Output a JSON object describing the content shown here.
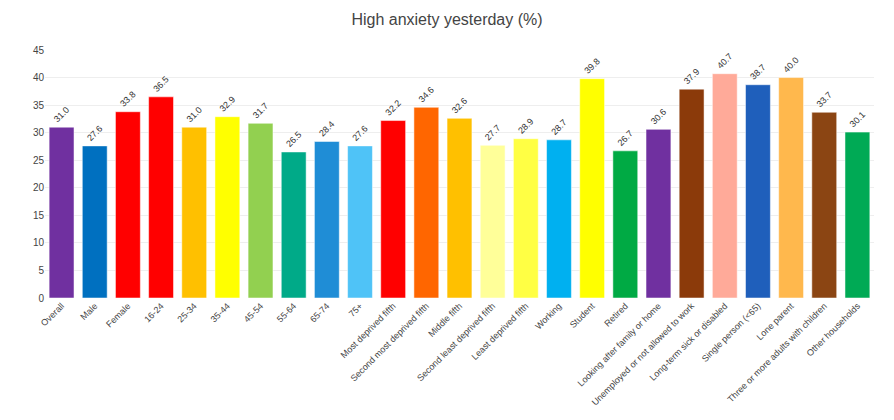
{
  "chart_data": {
    "type": "bar",
    "title": "High anxiety yesterday (%)",
    "categories": [
      "Overall",
      "Male",
      "Female",
      "16-24",
      "25-34",
      "35-44",
      "45-54",
      "55-64",
      "65-74",
      "75+",
      "Most deprived fifth",
      "Second most deprived fifth",
      "Middle fifth",
      "Second least deprived fifth",
      "Least deprived fifth",
      "Working",
      "Student",
      "Retired",
      "Looking after family or home",
      "Unemployed or not allowed to work",
      "Long-term sick or disabled",
      "Single person (<65)",
      "Lone parent",
      "Three or more adults with children",
      "Other households"
    ],
    "values": [
      31.0,
      27.6,
      33.8,
      36.5,
      31.0,
      32.9,
      31.7,
      26.5,
      28.4,
      27.6,
      32.2,
      34.6,
      32.6,
      27.7,
      28.9,
      28.7,
      39.8,
      26.7,
      30.6,
      37.9,
      40.7,
      38.7,
      40.0,
      33.7,
      30.1
    ],
    "value_labels": [
      "31.0",
      "27.6",
      "33.8",
      "36.5",
      "31.0",
      "32.9",
      "31.7",
      "26.5",
      "28.4",
      "27.6",
      "32.2",
      "34.6",
      "32.6",
      "27.7",
      "28.9",
      "28.7",
      "39.8",
      "26.7",
      "30.6",
      "37.9",
      "40.7",
      "38.7",
      "40.0",
      "33.7",
      "30.1"
    ],
    "colors": [
      "#7030A0",
      "#0070C0",
      "#FF0000",
      "#FF0000",
      "#FFC000",
      "#FFFF00",
      "#92D050",
      "#00AA88",
      "#1F8DD6",
      "#4FC3F7",
      "#FF0000",
      "#FF6600",
      "#FFC000",
      "#FFFF99",
      "#FFFF44",
      "#00B0F0",
      "#FFFF00",
      "#00AA44",
      "#7030A0",
      "#8B3A0A",
      "#FFAA99",
      "#1F5FBB",
      "#FFB84D",
      "#8B4513",
      "#00AA55"
    ],
    "ylim": [
      0,
      45
    ],
    "yticks": [
      0,
      5,
      10,
      15,
      20,
      25,
      30,
      35,
      40,
      45
    ],
    "grid": true,
    "data_labels": true
  }
}
